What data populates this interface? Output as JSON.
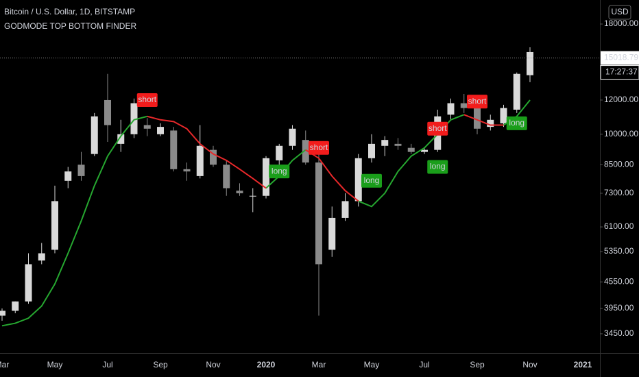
{
  "chart_data": {
    "type": "candlestick",
    "title": "Bitcoin / U.S. Dollar, 1D, BITSTAMP",
    "subtitle": "GODMODE TOP BOTTOM FINDER",
    "currency": "USD",
    "log_scale": true,
    "categories": [
      "Mar",
      null,
      null,
      null,
      "May",
      null,
      null,
      null,
      "Jul",
      null,
      null,
      null,
      "Sep",
      null,
      null,
      null,
      "Nov",
      null,
      null,
      null,
      "2020",
      null,
      null,
      null,
      "Mar",
      null,
      null,
      null,
      "May",
      null,
      null,
      null,
      "Jul",
      null,
      null,
      null,
      "Sep",
      null,
      null,
      null,
      "Nov",
      null,
      null,
      null,
      "2021"
    ],
    "open": [
      3800,
      3900,
      4100,
      5100,
      5400,
      7800,
      8500,
      9000,
      12000,
      9500,
      10000,
      10500,
      10000,
      10200,
      8300,
      8000,
      9200,
      8500,
      7400,
      7200,
      7200,
      8700,
      9400,
      9700,
      8600,
      5400,
      6400,
      7000,
      8800,
      9400,
      9500,
      9300,
      9100,
      9200,
      11100,
      11800,
      11500,
      10400,
      10600,
      11400,
      13700,
      null,
      null,
      null,
      null
    ],
    "high": [
      3950,
      4100,
      5300,
      5600,
      7600,
      8400,
      9100,
      11200,
      13800,
      10800,
      12100,
      10900,
      10600,
      10400,
      8600,
      10500,
      9400,
      8700,
      7700,
      7500,
      8900,
      9500,
      10500,
      10200,
      9200,
      6800,
      7300,
      9000,
      10000,
      9900,
      9800,
      9500,
      9300,
      11400,
      12100,
      12400,
      11700,
      11100,
      11700,
      13900,
      15900,
      null,
      null,
      null,
      null
    ],
    "low": [
      3700,
      3850,
      4050,
      5000,
      5300,
      7500,
      7800,
      8900,
      9600,
      9100,
      9800,
      9900,
      9900,
      8200,
      7800,
      7900,
      8400,
      7200,
      7200,
      6600,
      7100,
      8500,
      9200,
      8500,
      3800,
      5200,
      6300,
      6800,
      8600,
      8900,
      9200,
      9000,
      9000,
      9100,
      10800,
      11200,
      10000,
      10200,
      10400,
      11200,
      13200,
      null,
      null,
      null,
      null
    ],
    "close": [
      3900,
      4100,
      5000,
      5300,
      7000,
      8200,
      8000,
      11000,
      10500,
      10000,
      11800,
      10300,
      10400,
      8300,
      8200,
      9400,
      8500,
      7500,
      7300,
      7200,
      8800,
      9400,
      10300,
      8600,
      5000,
      6400,
      7000,
      8800,
      9500,
      9700,
      9400,
      9100,
      9200,
      11000,
      11800,
      11500,
      10300,
      10800,
      11500,
      13800,
      15500,
      null,
      null,
      null,
      null
    ],
    "ma_up": {
      "color": "#26a830",
      "values": [
        3600,
        3650,
        3750,
        4000,
        4500,
        5300,
        6300,
        7600,
        8900,
        9900,
        10800,
        11000,
        null,
        null,
        null,
        null,
        null,
        null,
        null,
        null,
        7500,
        8000,
        8700,
        9200,
        null,
        null,
        null,
        7000,
        6800,
        7300,
        8200,
        8900,
        9300,
        10000,
        10800,
        11100,
        null,
        null,
        10500,
        11000,
        12000,
        null,
        null,
        null,
        null
      ]
    },
    "ma_down": {
      "color": "#e8282a",
      "values": [
        null,
        null,
        null,
        null,
        null,
        null,
        null,
        null,
        null,
        null,
        null,
        11000,
        10800,
        10700,
        10300,
        9500,
        9000,
        8700,
        8300,
        7900,
        7500,
        null,
        null,
        9200,
        8800,
        8000,
        7400,
        7000,
        null,
        null,
        null,
        null,
        null,
        null,
        null,
        11100,
        10800,
        10500,
        10500,
        null,
        null,
        null,
        null,
        null,
        null
      ]
    },
    "signals": [
      {
        "text": "short",
        "index": 11,
        "value": 12000
      },
      {
        "text": "long",
        "index": 21,
        "value": 8200
      },
      {
        "text": "short",
        "index": 24,
        "value": 9300
      },
      {
        "text": "long",
        "index": 28,
        "value": 7800
      },
      {
        "text": "short",
        "index": 33,
        "value": 10300
      },
      {
        "text": "long",
        "index": 33,
        "value": 8400
      },
      {
        "text": "short",
        "index": 36,
        "value": 11900
      },
      {
        "text": "long",
        "index": 39,
        "value": 10600
      }
    ],
    "up_color": "#d9d9d9",
    "down_color": "#8a8a8a",
    "short_color": "#f21c1c",
    "long_color": "#1a9e1a",
    "last_price": 15018.79,
    "time_label": "17:27:37",
    "ylim": [
      3114,
      20460
    ],
    "yticks": [
      {
        "value": 3450,
        "label": "3450.00"
      },
      {
        "value": 3950,
        "label": "3950.00"
      },
      {
        "value": 4550,
        "label": "4550.00"
      },
      {
        "value": 5350,
        "label": "5350.00"
      },
      {
        "value": 6100,
        "label": "6100.00"
      },
      {
        "value": 7300,
        "label": "7300.00"
      },
      {
        "value": 8500,
        "label": "8500.00"
      },
      {
        "value": 10000,
        "label": "10000.00"
      },
      {
        "value": 12000,
        "label": "12000.00"
      },
      {
        "value": 18000,
        "label": "18000.00"
      }
    ]
  }
}
